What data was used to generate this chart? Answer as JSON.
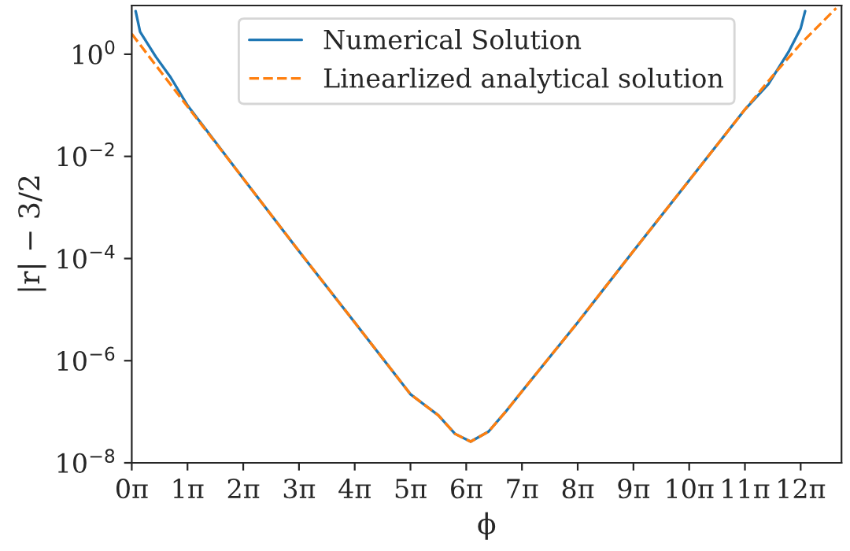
{
  "chart_data": {
    "type": "line",
    "xlabel": "ϕ",
    "ylabel": "|r| − 3/2",
    "log": "y",
    "legend": "top",
    "grid": false,
    "xlim": [
      0,
      40
    ],
    "ylim": [
      1e-08,
      9
    ],
    "xticks": [
      {
        "value": 0,
        "label": "0π"
      },
      {
        "value": 3.1416,
        "label": "1π"
      },
      {
        "value": 6.2832,
        "label": "2π"
      },
      {
        "value": 9.4248,
        "label": "3π"
      },
      {
        "value": 12.566,
        "label": "4π"
      },
      {
        "value": 15.708,
        "label": "5π"
      },
      {
        "value": 18.85,
        "label": "6π"
      },
      {
        "value": 21.991,
        "label": "7π"
      },
      {
        "value": 25.133,
        "label": "8π"
      },
      {
        "value": 28.274,
        "label": "9π"
      },
      {
        "value": 31.416,
        "label": "10π"
      },
      {
        "value": 34.558,
        "label": "11π"
      },
      {
        "value": 37.699,
        "label": "12π"
      }
    ],
    "yticks": [
      {
        "value": 1e-08,
        "label": "10$^{−8}$"
      },
      {
        "value": 1e-06,
        "label": "10$^{−6}$"
      },
      {
        "value": 0.0001,
        "label": "10$^{−4}$"
      },
      {
        "value": 0.01,
        "label": "10$^{−2}$"
      },
      {
        "value": 1,
        "label": "10$^{0}$"
      }
    ],
    "series": [
      {
        "name": "Numerical Solution",
        "color": "#1f77b4",
        "line_style": "solid",
        "x": [
          0.22,
          0.47,
          1.35,
          2.2,
          3.14,
          6.28,
          9.42,
          12.57,
          15.71,
          17.28,
          18.22,
          19.1,
          20.11,
          21.05,
          21.99,
          25.13,
          28.27,
          31.42,
          34.56,
          35.88,
          37.01,
          37.7,
          37.95
        ],
        "values": [
          7,
          2.75,
          0.9,
          0.35,
          0.1,
          0.0037,
          0.00014,
          5.6e-06,
          2.2e-07,
          8.5e-08,
          3.7e-08,
          2.6e-08,
          4.1e-08,
          9.8e-08,
          2.5e-07,
          5.6e-06,
          0.00014,
          0.0034,
          0.083,
          0.26,
          1.1,
          3.2,
          7
        ]
      },
      {
        "name": "Linearlized analytical solution",
        "color": "#ff7f0e",
        "line_style": "dashed",
        "x": [
          0,
          3.14,
          6.28,
          9.42,
          12.57,
          15.71,
          17.28,
          18.22,
          19.1,
          20.11,
          21.05,
          21.99,
          25.13,
          28.27,
          31.42,
          34.56,
          36.13,
          37.7,
          39.7
        ],
        "values": [
          2.5,
          0.095,
          0.0037,
          0.00014,
          5.6e-06,
          2.2e-07,
          8.5e-08,
          3.7e-08,
          2.6e-08,
          4.1e-08,
          9.8e-08,
          2.5e-07,
          5.6e-06,
          0.00014,
          0.0034,
          0.083,
          0.38,
          1.6,
          8
        ]
      }
    ]
  }
}
